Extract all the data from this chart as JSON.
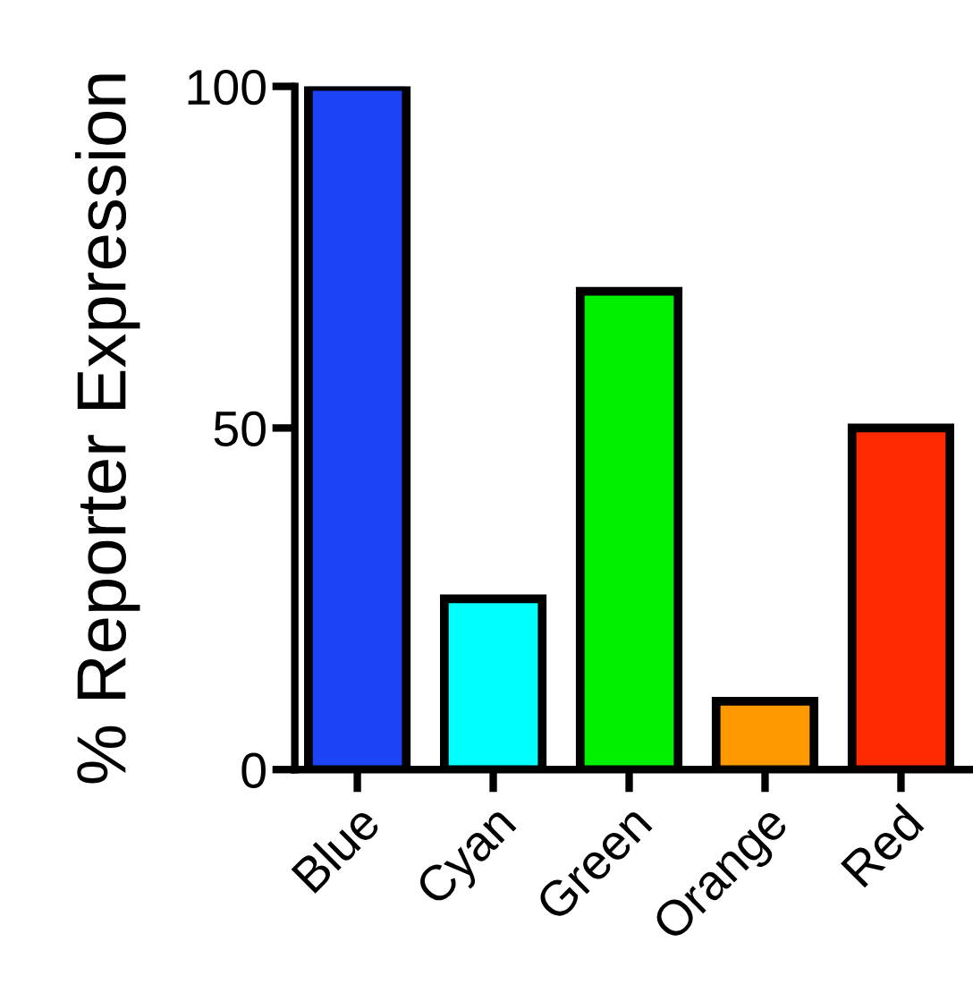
{
  "chart_data": {
    "type": "bar",
    "ylabel": "% Reporter Expression",
    "categories": [
      "Blue",
      "Cyan",
      "Green",
      "Orange",
      "Red"
    ],
    "values": [
      100,
      25,
      70,
      10,
      50
    ],
    "colors": [
      "#1a44f5",
      "#00ffff",
      "#00f000",
      "#ff9900",
      "#ff2a00"
    ],
    "ylim": [
      0,
      100
    ],
    "yticks": [
      0,
      50,
      100
    ],
    "grid": false,
    "legend": false
  }
}
